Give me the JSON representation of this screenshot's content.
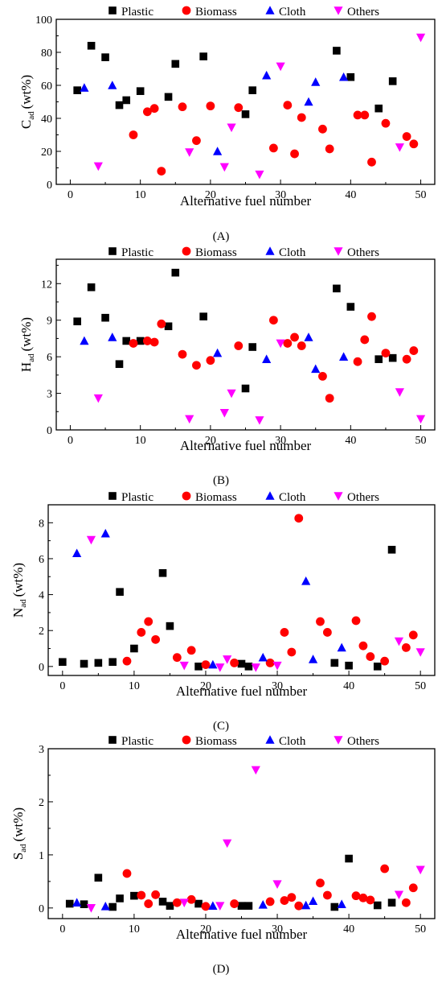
{
  "legend_labels": [
    "Plastic",
    "Biomass",
    "Cloth",
    "Others"
  ],
  "series_colors": {
    "Plastic": "#000000",
    "Biomass": "#ff0000",
    "Cloth": "#0000ff",
    "Others": "#ff00ff"
  },
  "chart_data": [
    {
      "type": "scatter",
      "panel_label": "(A)",
      "xlabel": "Alternative fuel number",
      "ylabel_main": "C",
      "ylabel_sub": "ad",
      "ylabel_unit": "(wt%)",
      "xlim": [
        -2,
        52
      ],
      "ylim": [
        0,
        100
      ],
      "xticks": [
        0,
        10,
        20,
        30,
        40,
        50
      ],
      "yticks": [
        0,
        20,
        40,
        60,
        80,
        100
      ],
      "legend": "top",
      "grid": false,
      "series": [
        {
          "name": "Plastic",
          "marker": "square",
          "x": [
            1,
            3,
            5,
            7,
            8,
            10,
            14,
            15,
            19,
            25,
            26,
            38,
            40,
            44,
            46
          ],
          "y": [
            57,
            84,
            77,
            48,
            51,
            56.5,
            53,
            73,
            77.5,
            42.5,
            57,
            81,
            65,
            46,
            62.5
          ]
        },
        {
          "name": "Biomass",
          "marker": "circle",
          "x": [
            9,
            11,
            12,
            13,
            16,
            18,
            20,
            24,
            29,
            31,
            32,
            33,
            36,
            37,
            41,
            42,
            43,
            45,
            48,
            49
          ],
          "y": [
            30,
            44,
            46,
            8,
            47,
            26.5,
            47.5,
            46.5,
            22,
            48,
            18.5,
            40.5,
            33.5,
            21.5,
            42,
            42,
            13.5,
            37,
            29,
            24.5
          ]
        },
        {
          "name": "Cloth",
          "marker": "triangle-up",
          "x": [
            2,
            6,
            21,
            28,
            34,
            35,
            39
          ],
          "y": [
            58.5,
            60,
            20,
            66,
            50,
            62,
            65
          ]
        },
        {
          "name": "Others",
          "marker": "triangle-down",
          "x": [
            4,
            17,
            22,
            23,
            27,
            30,
            47,
            50
          ],
          "y": [
            11,
            19.5,
            10.5,
            34.5,
            6,
            71.5,
            22.5,
            89
          ]
        }
      ]
    },
    {
      "type": "scatter",
      "panel_label": "(B)",
      "xlabel": "Alternative fuel number",
      "ylabel_main": "H",
      "ylabel_sub": "ad",
      "ylabel_unit": "(wt%)",
      "xlim": [
        -2,
        52
      ],
      "ylim": [
        0,
        14
      ],
      "xticks": [
        0,
        10,
        20,
        30,
        40,
        50
      ],
      "yticks": [
        0,
        3,
        6,
        9,
        12
      ],
      "legend": "top",
      "grid": false,
      "series": [
        {
          "name": "Plastic",
          "marker": "square",
          "x": [
            1,
            3,
            5,
            7,
            8,
            10,
            14,
            15,
            19,
            25,
            26,
            38,
            40,
            44,
            46
          ],
          "y": [
            8.9,
            11.7,
            9.2,
            5.4,
            7.3,
            7.3,
            8.5,
            12.9,
            9.3,
            3.4,
            6.8,
            11.6,
            10.1,
            5.8,
            5.9
          ]
        },
        {
          "name": "Biomass",
          "marker": "circle",
          "x": [
            9,
            11,
            12,
            13,
            16,
            18,
            20,
            24,
            29,
            31,
            32,
            33,
            36,
            37,
            41,
            42,
            43,
            45,
            48,
            49
          ],
          "y": [
            7.1,
            7.3,
            7.2,
            8.7,
            6.2,
            5.3,
            5.7,
            6.9,
            9.0,
            7.1,
            7.6,
            6.9,
            4.4,
            2.6,
            5.6,
            7.4,
            9.3,
            6.3,
            5.8,
            6.5
          ]
        },
        {
          "name": "Cloth",
          "marker": "triangle-up",
          "x": [
            2,
            6,
            21,
            28,
            34,
            35,
            39
          ],
          "y": [
            7.3,
            7.6,
            6.3,
            5.8,
            7.6,
            5.0,
            6.0
          ]
        },
        {
          "name": "Others",
          "marker": "triangle-down",
          "x": [
            4,
            17,
            22,
            23,
            27,
            30,
            47,
            50
          ],
          "y": [
            2.6,
            0.9,
            1.4,
            3.0,
            0.8,
            7.1,
            3.1,
            0.9
          ]
        }
      ]
    },
    {
      "type": "scatter",
      "panel_label": "(C)",
      "xlabel": "Alternative fuel number",
      "ylabel_main": "N",
      "ylabel_sub": "ad",
      "ylabel_unit": "(wt%)",
      "xlim": [
        -2,
        52
      ],
      "ylim": [
        -0.5,
        9
      ],
      "xticks": [
        0,
        10,
        20,
        30,
        40,
        50
      ],
      "yticks": [
        0,
        2,
        4,
        6,
        8
      ],
      "legend": "top",
      "grid": false,
      "series": [
        {
          "name": "Plastic",
          "marker": "square",
          "x": [
            0,
            3,
            5,
            7,
            8,
            10,
            14,
            15,
            19,
            25,
            26,
            38,
            40,
            44,
            46
          ],
          "y": [
            0.25,
            0.15,
            0.2,
            0.25,
            4.15,
            1.0,
            5.2,
            2.25,
            0.0,
            0.15,
            0.0,
            0.2,
            0.05,
            0.0,
            6.5
          ]
        },
        {
          "name": "Biomass",
          "marker": "circle",
          "x": [
            9,
            11,
            12,
            13,
            16,
            18,
            20,
            24,
            29,
            31,
            32,
            33,
            36,
            37,
            41,
            42,
            43,
            45,
            48,
            49
          ],
          "y": [
            0.3,
            1.9,
            2.5,
            1.5,
            0.5,
            0.9,
            0.1,
            0.2,
            0.2,
            1.9,
            0.8,
            8.25,
            2.5,
            1.9,
            2.55,
            1.15,
            0.55,
            0.3,
            1.05,
            1.75
          ]
        },
        {
          "name": "Cloth",
          "marker": "triangle-up",
          "x": [
            2,
            6,
            21,
            28,
            34,
            35,
            39
          ],
          "y": [
            6.3,
            7.4,
            0.1,
            0.5,
            4.75,
            0.4,
            1.05
          ]
        },
        {
          "name": "Others",
          "marker": "triangle-down",
          "x": [
            4,
            17,
            22,
            23,
            27,
            30,
            47,
            50
          ],
          "y": [
            7.05,
            0.05,
            -0.05,
            0.4,
            -0.05,
            0.05,
            1.4,
            0.8
          ]
        }
      ]
    },
    {
      "type": "scatter",
      "panel_label": "(D)",
      "xlabel": "Alternative fuel number",
      "ylabel_main": "S",
      "ylabel_sub": "ad",
      "ylabel_unit": "(wt%)",
      "xlim": [
        -2,
        52
      ],
      "ylim": [
        -0.2,
        3
      ],
      "xticks": [
        0,
        10,
        20,
        30,
        40,
        50
      ],
      "yticks": [
        0,
        1,
        2,
        3
      ],
      "legend": "top",
      "grid": false,
      "series": [
        {
          "name": "Plastic",
          "marker": "square",
          "x": [
            1,
            3,
            5,
            7,
            8,
            10,
            14,
            15,
            19,
            25,
            26,
            38,
            40,
            44,
            46
          ],
          "y": [
            0.08,
            0.07,
            0.57,
            0.02,
            0.18,
            0.23,
            0.12,
            0.04,
            0.08,
            0.04,
            0.04,
            0.02,
            0.93,
            0.05,
            0.1
          ]
        },
        {
          "name": "Biomass",
          "marker": "circle",
          "x": [
            9,
            11,
            12,
            13,
            16,
            18,
            20,
            24,
            29,
            31,
            32,
            33,
            36,
            37,
            41,
            42,
            43,
            45,
            48,
            49
          ],
          "y": [
            0.65,
            0.24,
            0.08,
            0.25,
            0.1,
            0.16,
            0.03,
            0.08,
            0.12,
            0.14,
            0.2,
            0.04,
            0.47,
            0.24,
            0.23,
            0.19,
            0.15,
            0.74,
            0.1,
            0.38
          ]
        },
        {
          "name": "Cloth",
          "marker": "triangle-up",
          "x": [
            2,
            6,
            21,
            28,
            34,
            35,
            39
          ],
          "y": [
            0.1,
            0.03,
            0.04,
            0.06,
            0.05,
            0.13,
            0.07
          ]
        },
        {
          "name": "Others",
          "marker": "triangle-down",
          "x": [
            4,
            17,
            22,
            23,
            27,
            30,
            47,
            50
          ],
          "y": [
            0.0,
            0.1,
            0.04,
            1.22,
            2.6,
            0.45,
            0.25,
            0.72
          ]
        }
      ]
    }
  ]
}
